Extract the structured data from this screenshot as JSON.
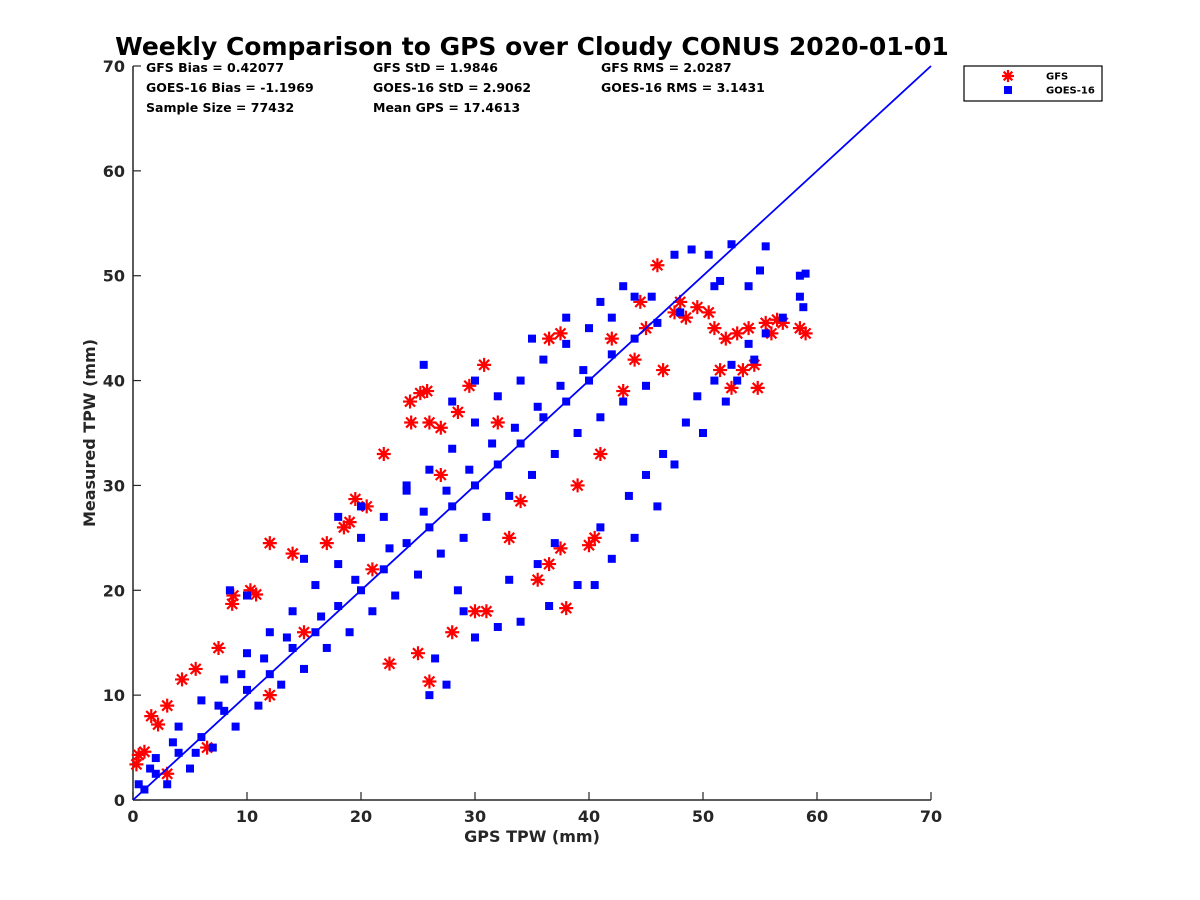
{
  "chart_data": {
    "type": "scatter",
    "title": "Weekly Comparison to GPS over Cloudy CONUS 2020-01-01",
    "xlabel": "GPS TPW (mm)",
    "ylabel": "Measured TPW (mm)",
    "xlim": [
      0,
      70
    ],
    "ylim": [
      0,
      70
    ],
    "x_ticks": [
      "0",
      "10",
      "20",
      "30",
      "40",
      "50",
      "60",
      "70"
    ],
    "y_ticks": [
      "0",
      "10",
      "20",
      "30",
      "40",
      "50",
      "60",
      "70"
    ],
    "grid": false,
    "legend_position": "top-right, outside plot",
    "stats": [
      [
        "GFS Bias = 0.42077",
        "GFS StD = 1.9846",
        "GFS RMS = 2.0287"
      ],
      [
        "GOES-16 Bias = -1.1969",
        "GOES-16 StD = 2.9062",
        "GOES-16 RMS = 3.1431"
      ],
      [
        "Sample Size = 77432",
        "Mean GPS = 17.4613",
        ""
      ]
    ],
    "reference_line": {
      "x": [
        0,
        70
      ],
      "y": [
        0,
        70
      ],
      "color": "#0000ff"
    },
    "series": [
      {
        "name": "GFS",
        "marker": "asterisk",
        "color": "#ff0000",
        "points": [
          [
            0.3,
            3.4
          ],
          [
            0.5,
            4.3
          ],
          [
            1.0,
            4.6
          ],
          [
            1.6,
            8.0
          ],
          [
            2.2,
            7.2
          ],
          [
            3.0,
            9.0
          ],
          [
            4.3,
            11.5
          ],
          [
            5.5,
            12.5
          ],
          [
            7.5,
            14.5
          ],
          [
            8.7,
            18.7
          ],
          [
            8.8,
            19.5
          ],
          [
            10.3,
            20.0
          ],
          [
            10.8,
            19.6
          ],
          [
            12.0,
            24.5
          ],
          [
            14.0,
            23.5
          ],
          [
            17.0,
            24.5
          ],
          [
            18.5,
            26.0
          ],
          [
            19.0,
            26.5
          ],
          [
            19.5,
            28.7
          ],
          [
            20.5,
            28.0
          ],
          [
            22.0,
            33.0
          ],
          [
            24.3,
            38.0
          ],
          [
            24.4,
            36.0
          ],
          [
            25.2,
            38.8
          ],
          [
            25.8,
            39.0
          ],
          [
            26.0,
            36.0
          ],
          [
            27.0,
            35.5
          ],
          [
            28.5,
            37.0
          ],
          [
            29.5,
            39.5
          ],
          [
            30.8,
            41.5
          ],
          [
            36.5,
            44.0
          ],
          [
            37.5,
            44.5
          ],
          [
            45.0,
            45.0
          ],
          [
            46.0,
            51.0
          ],
          [
            47.5,
            46.5
          ],
          [
            48.5,
            46.0
          ],
          [
            49.5,
            47.0
          ],
          [
            50.5,
            46.5
          ],
          [
            51.0,
            45.0
          ],
          [
            51.5,
            41.0
          ],
          [
            52.0,
            44.0
          ],
          [
            52.5,
            39.3
          ],
          [
            53.0,
            44.5
          ],
          [
            53.5,
            41.0
          ],
          [
            54.0,
            45.0
          ],
          [
            54.5,
            41.5
          ],
          [
            54.8,
            39.3
          ],
          [
            55.5,
            45.5
          ],
          [
            56.0,
            44.5
          ],
          [
            56.5,
            45.8
          ],
          [
            57.0,
            45.5
          ],
          [
            58.5,
            45.0
          ],
          [
            59.0,
            44.5
          ],
          [
            31.0,
            18.0
          ],
          [
            30.0,
            18.0
          ],
          [
            38.0,
            18.3
          ],
          [
            35.5,
            21.0
          ],
          [
            36.5,
            22.5
          ],
          [
            37.5,
            24.0
          ],
          [
            40.0,
            24.3
          ],
          [
            40.5,
            25.0
          ],
          [
            26.0,
            11.3
          ],
          [
            22.5,
            13.0
          ],
          [
            33.0,
            25.0
          ],
          [
            28.0,
            16.0
          ],
          [
            25.0,
            14.0
          ],
          [
            44.0,
            42.0
          ],
          [
            42.0,
            44.0
          ],
          [
            48.0,
            47.5
          ],
          [
            44.5,
            47.5
          ],
          [
            41.0,
            33.0
          ],
          [
            39.0,
            30.0
          ],
          [
            34.0,
            28.5
          ],
          [
            32.0,
            36.0
          ],
          [
            27.0,
            31.0
          ],
          [
            21.0,
            22.0
          ],
          [
            15.0,
            16.0
          ],
          [
            12.0,
            10.0
          ],
          [
            6.5,
            5.0
          ],
          [
            3.0,
            2.5
          ],
          [
            46.5,
            41.0
          ],
          [
            43.0,
            39.0
          ]
        ]
      },
      {
        "name": "GOES-16",
        "marker": "square",
        "color": "#0000ff",
        "points": [
          [
            0.5,
            1.5
          ],
          [
            2.0,
            2.5
          ],
          [
            4.0,
            4.5
          ],
          [
            6.0,
            6.0
          ],
          [
            8.0,
            8.5
          ],
          [
            10.0,
            10.5
          ],
          [
            12.0,
            12.0
          ],
          [
            14.0,
            14.5
          ],
          [
            16.0,
            16.0
          ],
          [
            18.0,
            18.5
          ],
          [
            20.0,
            20.0
          ],
          [
            22.0,
            22.0
          ],
          [
            24.0,
            24.5
          ],
          [
            26.0,
            26.0
          ],
          [
            28.0,
            28.0
          ],
          [
            30.0,
            30.0
          ],
          [
            32.0,
            32.0
          ],
          [
            34.0,
            34.0
          ],
          [
            36.0,
            36.5
          ],
          [
            38.0,
            38.0
          ],
          [
            40.0,
            40.0
          ],
          [
            42.0,
            42.5
          ],
          [
            44.0,
            44.0
          ],
          [
            46.0,
            45.5
          ],
          [
            48.0,
            46.5
          ],
          [
            5.0,
            3.0
          ],
          [
            7.0,
            5.0
          ],
          [
            9.0,
            7.0
          ],
          [
            11.0,
            9.0
          ],
          [
            13.0,
            11.0
          ],
          [
            15.0,
            12.5
          ],
          [
            17.0,
            14.5
          ],
          [
            19.0,
            16.0
          ],
          [
            21.0,
            18.0
          ],
          [
            23.0,
            19.5
          ],
          [
            25.0,
            21.5
          ],
          [
            27.0,
            23.5
          ],
          [
            29.0,
            25.0
          ],
          [
            31.0,
            27.0
          ],
          [
            33.0,
            29.0
          ],
          [
            35.0,
            31.0
          ],
          [
            37.0,
            33.0
          ],
          [
            39.0,
            35.0
          ],
          [
            41.0,
            36.5
          ],
          [
            43.0,
            38.0
          ],
          [
            45.0,
            39.5
          ],
          [
            2.0,
            4.0
          ],
          [
            4.0,
            7.0
          ],
          [
            6.0,
            9.5
          ],
          [
            8.0,
            11.5
          ],
          [
            10.0,
            14.0
          ],
          [
            12.0,
            16.0
          ],
          [
            14.0,
            18.0
          ],
          [
            16.0,
            20.5
          ],
          [
            18.0,
            22.5
          ],
          [
            20.0,
            25.0
          ],
          [
            22.0,
            27.0
          ],
          [
            24.0,
            29.5
          ],
          [
            26.0,
            31.5
          ],
          [
            28.0,
            33.5
          ],
          [
            30.0,
            36.0
          ],
          [
            32.0,
            38.5
          ],
          [
            34.0,
            40.0
          ],
          [
            36.0,
            42.0
          ],
          [
            38.0,
            43.5
          ],
          [
            40.0,
            45.0
          ],
          [
            42.0,
            46.0
          ],
          [
            8.5,
            20.0
          ],
          [
            10.0,
            19.5
          ],
          [
            15.0,
            23.0
          ],
          [
            20.0,
            28.0
          ],
          [
            25.5,
            41.5
          ],
          [
            24.0,
            30.0
          ],
          [
            18.0,
            27.0
          ],
          [
            28.0,
            38.0
          ],
          [
            30.0,
            40.0
          ],
          [
            35.0,
            44.0
          ],
          [
            38.0,
            46.0
          ],
          [
            41.0,
            47.5
          ],
          [
            44.0,
            48.0
          ],
          [
            43.0,
            49.0
          ],
          [
            45.5,
            48.0
          ],
          [
            26.0,
            10.0
          ],
          [
            27.5,
            11.0
          ],
          [
            26.5,
            13.5
          ],
          [
            30.0,
            15.5
          ],
          [
            32.0,
            16.5
          ],
          [
            34.0,
            17.0
          ],
          [
            36.5,
            18.5
          ],
          [
            39.0,
            20.5
          ],
          [
            40.5,
            20.5
          ],
          [
            42.0,
            23.0
          ],
          [
            44.0,
            25.0
          ],
          [
            46.0,
            28.0
          ],
          [
            47.5,
            32.0
          ],
          [
            50.0,
            35.0
          ],
          [
            52.0,
            38.0
          ],
          [
            53.0,
            40.0
          ],
          [
            54.5,
            42.0
          ],
          [
            47.5,
            52.0
          ],
          [
            49.0,
            52.5
          ],
          [
            50.5,
            52.0
          ],
          [
            52.5,
            53.0
          ],
          [
            55.5,
            52.8
          ],
          [
            55.0,
            50.5
          ],
          [
            58.5,
            50.0
          ],
          [
            59.0,
            50.2
          ],
          [
            58.5,
            48.0
          ],
          [
            58.8,
            47.0
          ],
          [
            54.0,
            49.0
          ],
          [
            51.5,
            49.5
          ],
          [
            51.0,
            49.0
          ],
          [
            33.0,
            21.0
          ],
          [
            35.5,
            22.5
          ],
          [
            29.0,
            18.0
          ],
          [
            28.5,
            20.0
          ],
          [
            37.0,
            24.5
          ],
          [
            41.0,
            26.0
          ],
          [
            43.5,
            29.0
          ],
          [
            45.0,
            31.0
          ],
          [
            46.5,
            33.0
          ],
          [
            48.5,
            36.0
          ],
          [
            49.5,
            38.5
          ],
          [
            51.0,
            40.0
          ],
          [
            52.5,
            41.5
          ],
          [
            54.0,
            43.5
          ],
          [
            55.5,
            44.5
          ],
          [
            57.0,
            46.0
          ],
          [
            1.0,
            1.0
          ],
          [
            1.5,
            3.0
          ],
          [
            3.0,
            1.5
          ],
          [
            3.5,
            5.5
          ],
          [
            5.5,
            4.5
          ],
          [
            7.5,
            9.0
          ],
          [
            9.5,
            12.0
          ],
          [
            11.5,
            13.5
          ],
          [
            13.5,
            15.5
          ],
          [
            16.5,
            17.5
          ],
          [
            19.5,
            21.0
          ],
          [
            22.5,
            24.0
          ],
          [
            25.5,
            27.5
          ],
          [
            27.5,
            29.5
          ],
          [
            29.5,
            31.5
          ],
          [
            31.5,
            34.0
          ],
          [
            33.5,
            35.5
          ],
          [
            35.5,
            37.5
          ],
          [
            37.5,
            39.5
          ],
          [
            39.5,
            41.0
          ]
        ]
      }
    ]
  }
}
